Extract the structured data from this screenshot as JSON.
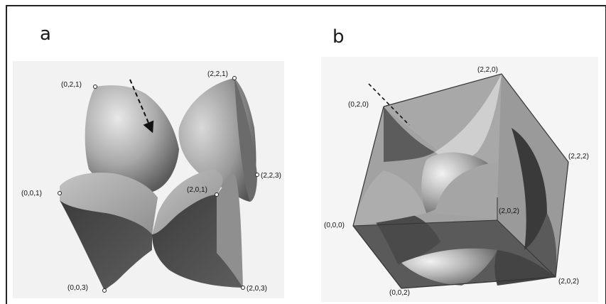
{
  "panels": {
    "a": {
      "label": "a",
      "coords": {
        "p021": "(0,2,1)",
        "p221": "(2,2,1)",
        "p223": "(2,2,3)",
        "p001": "(0,0,1)",
        "p201": "(2,0,1)",
        "p003": "(0,0,3)",
        "p203": "(2,0,3)"
      }
    },
    "b": {
      "label": "b",
      "coords": {
        "p020": "(0,2,0)",
        "p220": "(2,2,0)",
        "p222": "(2,2,2)",
        "p202a": "(2,0,2)",
        "p000": "(0,0,0)",
        "p202b": "(2,0,2)",
        "p002": "(0,0,2)"
      }
    }
  },
  "colors": {
    "face_light": "#a7a7a7",
    "face_dark": "#4d4d4d",
    "sphere_highlight": "#e6e6e6",
    "frame": "#222222"
  }
}
